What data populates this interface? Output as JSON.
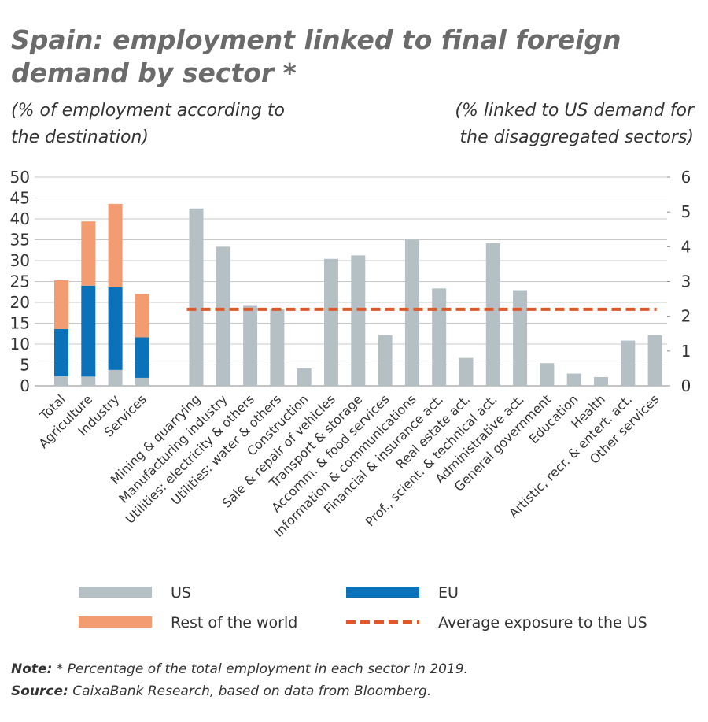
{
  "chart_data": {
    "type": "bar",
    "stacked": true,
    "title": "Spain: employment linked to final foreign demand by sector *",
    "ylabel": "(% of employment according to the destination)",
    "y2label": "(% linked to US demand for the disaggregated sectors)",
    "categories": [
      "Total",
      "Agriculture",
      "Industry",
      "Services"
    ],
    "series": [
      {
        "name": "US",
        "color": "#b4c0c3",
        "values": [
          2.3,
          2.2,
          3.8,
          1.9
        ]
      },
      {
        "name": "EU",
        "color": "#0b72b9",
        "values": [
          11.3,
          21.8,
          19.8,
          9.7
        ]
      },
      {
        "name": "Rest of the world",
        "color": "#f39c72",
        "values": [
          11.7,
          15.4,
          20,
          10.4
        ]
      }
    ],
    "sectors": {
      "axis": "y2",
      "categories": [
        "Mining & quarrying",
        "Manufacturing industry",
        "Utilities: electricity & others",
        "Utilities: water & others",
        "Construction",
        "Sale & repair of vehicles",
        "Transport & storage",
        "Accomm. & food services",
        "Information & communications",
        "Financial & insurance act.",
        "Real estate act.",
        "Prof., scient. & technical act.",
        "Administrative act.",
        "General government",
        "Education",
        "Health",
        "Artistic, recr. & entert. act.",
        "Other services"
      ],
      "values": [
        5.1,
        4.0,
        2.3,
        2.2,
        0.5,
        3.65,
        3.75,
        1.45,
        4.2,
        2.8,
        0.8,
        4.1,
        2.75,
        0.65,
        0.35,
        0.25,
        1.3,
        1.45
      ]
    },
    "average": {
      "name": "Average exposure to the US",
      "value": 2.2,
      "color": "#e0582a",
      "axis": "y2"
    },
    "ylim": [
      0,
      50
    ],
    "yticks": [
      0,
      5,
      10,
      15,
      20,
      25,
      30,
      35,
      40,
      45,
      50
    ],
    "y2lim": [
      0,
      6
    ],
    "y2ticks": [
      0,
      1,
      2,
      3,
      4,
      5,
      6
    ],
    "grid": true,
    "notes": [
      {
        "label": "Note:",
        "text": "* Percentage of the total employment in each sector in 2019."
      },
      {
        "label": "Source:",
        "text": "CaixaBank Research, based on data from Bloomberg."
      }
    ]
  }
}
